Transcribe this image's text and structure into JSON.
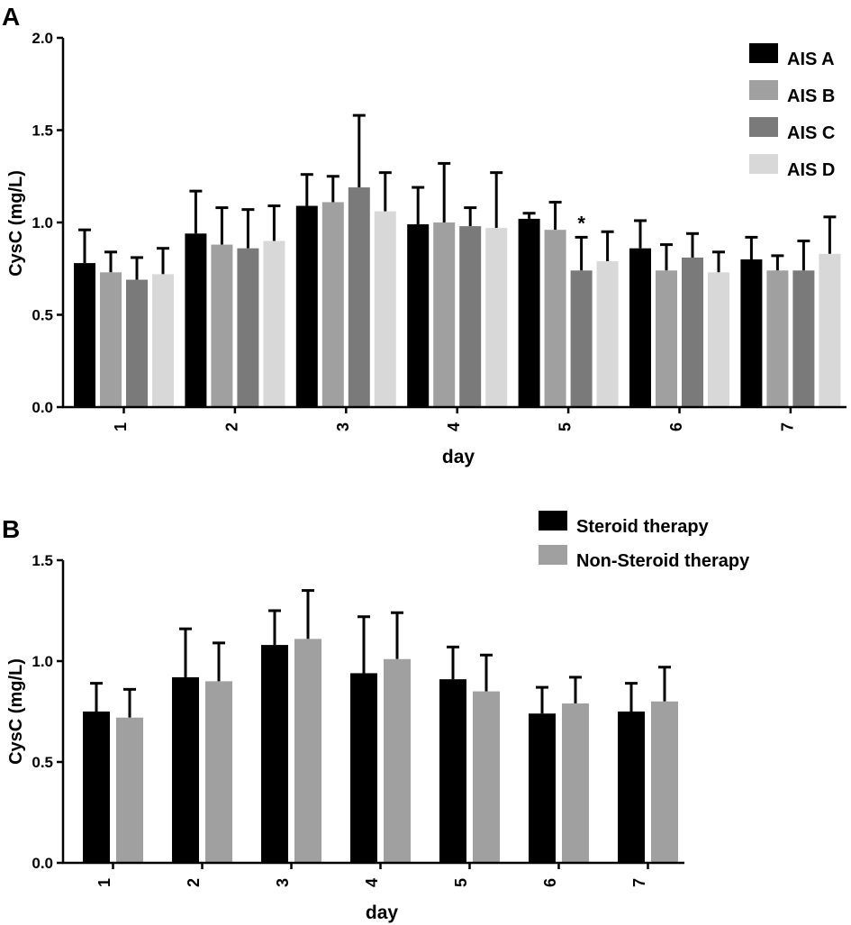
{
  "chart_data": [
    {
      "panel_label": "A",
      "type": "bar",
      "xlabel": "day",
      "ylabel": "CysC (mg/L)",
      "ylim": [
        0,
        2.0
      ],
      "yticks": [
        "0.0",
        "0.5",
        "1.0",
        "1.5",
        "2.0"
      ],
      "categories": [
        "1",
        "2",
        "3",
        "4",
        "5",
        "6",
        "7"
      ],
      "legend_position": "top-right",
      "series": [
        {
          "name": "AIS A",
          "color": "#000000",
          "values": [
            0.78,
            0.94,
            1.09,
            0.99,
            1.02,
            0.86,
            0.8
          ],
          "errors": [
            0.18,
            0.23,
            0.17,
            0.2,
            0.03,
            0.15,
            0.12
          ]
        },
        {
          "name": "AIS B",
          "color": "#a0a0a0",
          "values": [
            0.73,
            0.88,
            1.11,
            1.0,
            0.96,
            0.74,
            0.74
          ],
          "errors": [
            0.11,
            0.2,
            0.14,
            0.32,
            0.15,
            0.14,
            0.08
          ]
        },
        {
          "name": "AIS C",
          "color": "#7a7a7a",
          "values": [
            0.69,
            0.86,
            1.19,
            0.98,
            0.74,
            0.81,
            0.74
          ],
          "errors": [
            0.12,
            0.21,
            0.39,
            0.1,
            0.18,
            0.13,
            0.16
          ]
        },
        {
          "name": "AIS D",
          "color": "#d8d8d8",
          "values": [
            0.72,
            0.9,
            1.06,
            0.97,
            0.79,
            0.73,
            0.83
          ],
          "errors": [
            0.14,
            0.19,
            0.21,
            0.3,
            0.16,
            0.11,
            0.2
          ]
        }
      ],
      "annotations": [
        {
          "text": "*",
          "category": "5",
          "series": "AIS C"
        }
      ]
    },
    {
      "panel_label": "B",
      "type": "bar",
      "xlabel": "day",
      "ylabel": "CysC (mg/L)",
      "ylim": [
        0,
        1.5
      ],
      "yticks": [
        "0.0",
        "0.5",
        "1.0",
        "1.5"
      ],
      "categories": [
        "1",
        "2",
        "3",
        "4",
        "5",
        "6",
        "7"
      ],
      "legend_position": "top-right",
      "series": [
        {
          "name": "Steroid therapy",
          "color": "#000000",
          "values": [
            0.75,
            0.92,
            1.08,
            0.94,
            0.91,
            0.74,
            0.75
          ],
          "errors": [
            0.14,
            0.24,
            0.17,
            0.28,
            0.16,
            0.13,
            0.14
          ]
        },
        {
          "name": "Non-Steroid therapy",
          "color": "#a0a0a0",
          "values": [
            0.72,
            0.9,
            1.11,
            1.01,
            0.85,
            0.79,
            0.8
          ],
          "errors": [
            0.14,
            0.19,
            0.24,
            0.23,
            0.18,
            0.13,
            0.17
          ]
        }
      ],
      "annotations": []
    }
  ]
}
